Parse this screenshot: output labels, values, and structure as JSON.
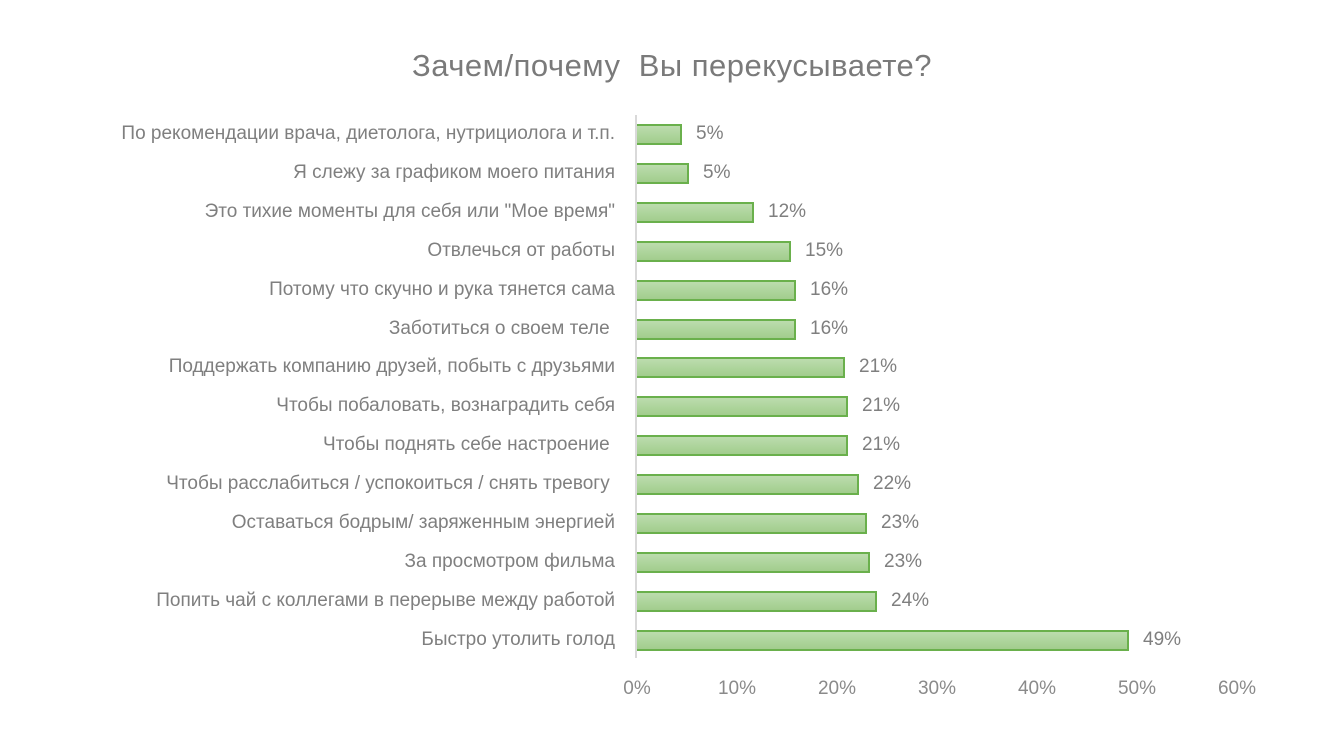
{
  "chart_data": {
    "type": "bar",
    "orientation": "horizontal",
    "title": "Зачем/почему  Вы перекусываете?",
    "xlabel": "",
    "ylabel": "",
    "xlim": [
      0,
      60
    ],
    "x_ticks": [
      "0%",
      "10%",
      "20%",
      "30%",
      "40%",
      "50%",
      "60%"
    ],
    "grid": false,
    "legend": null,
    "bar_color": "#a9d18e",
    "bar_border_color": "#6ab04c",
    "categories": [
      "По рекомендации врача, диетолога, нутрициолога и т.п.",
      "Я слежу за графиком моего питания",
      "Это тихие моменты для себя или \"Мое время\"",
      "Отвлечься от работы",
      "Потому что скучно и рука тянется сама",
      "Заботиться о своем теле ",
      "Поддержать компанию друзей, побыть с друзьями",
      "Чтобы побаловать, вознаградить себя",
      "Чтобы поднять себе настроение ",
      "Чтобы расслабиться / успокоиться / снять тревогу ",
      "Оставаться бодрым/ заряженным энергией",
      "За просмотром фильма",
      "Попить чай с коллегами в перерыве между работой",
      "Быстро утолить голод"
    ],
    "values": [
      4.5,
      5.2,
      11.7,
      15.4,
      15.9,
      15.9,
      20.8,
      21.1,
      21.1,
      22.2,
      23.0,
      23.3,
      24.0,
      49.2
    ],
    "value_labels": [
      "5%",
      "5%",
      "12%",
      "15%",
      "16%",
      "16%",
      "21%",
      "21%",
      "21%",
      "22%",
      "23%",
      "23%",
      "24%",
      "49%"
    ]
  }
}
